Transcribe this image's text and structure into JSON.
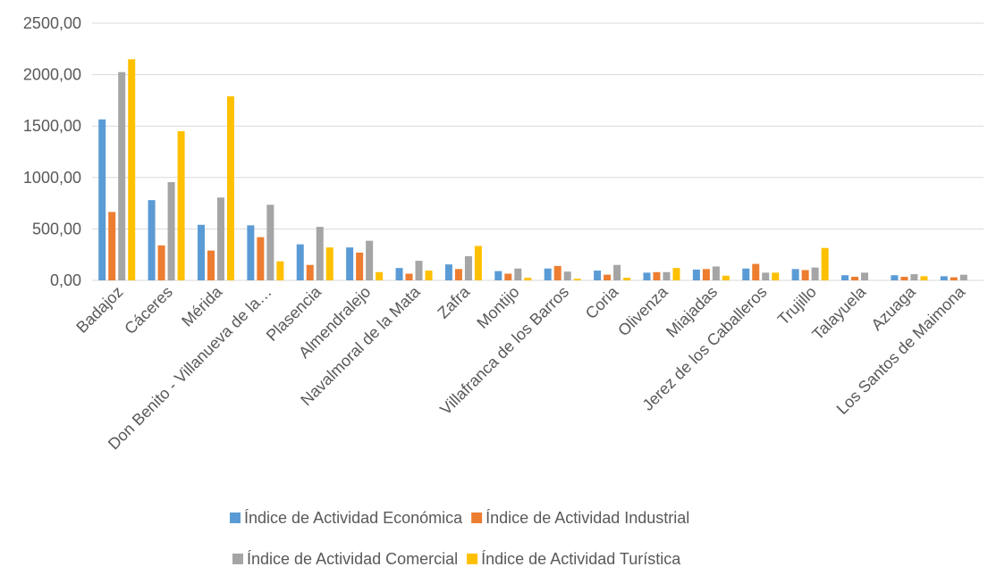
{
  "chart_data": {
    "type": "bar",
    "title": "",
    "xlabel": "",
    "ylabel": "",
    "ylim": [
      0,
      2500
    ],
    "yticks": [
      0,
      500,
      1000,
      1500,
      2000,
      2500
    ],
    "ytick_labels": [
      "0,00",
      "500,00",
      "1000,00",
      "1500,00",
      "2000,00",
      "2500,00"
    ],
    "grid": true,
    "legend_position": "bottom",
    "categories": [
      "Badajoz",
      "Cáceres",
      "Mérida",
      "Don Benito - Villanueva de la…",
      "Plasencia",
      "Almendralejo",
      "Navalmoral de la Mata",
      "Zafra",
      "Montijo",
      "Villafranca de los Barros",
      "Coria",
      "Olivenza",
      "Miajadas",
      "Jerez de los Caballeros",
      "Trujillo",
      "Talayuela",
      "Azuaga",
      "Los Santos de Maimona"
    ],
    "series": [
      {
        "name": "Índice de Actividad Económica",
        "color": "#5b9bd5",
        "values": [
          1565,
          780,
          540,
          535,
          350,
          320,
          120,
          155,
          90,
          115,
          95,
          75,
          105,
          115,
          110,
          50,
          50,
          40
        ]
      },
      {
        "name": "Índice de Actividad Industrial",
        "color": "#ed7d31",
        "values": [
          665,
          340,
          290,
          420,
          150,
          270,
          65,
          110,
          65,
          140,
          55,
          80,
          110,
          160,
          100,
          35,
          35,
          30
        ]
      },
      {
        "name": "Índice de Actividad Comercial",
        "color": "#a5a5a5",
        "values": [
          2025,
          955,
          805,
          735,
          520,
          385,
          190,
          235,
          115,
          85,
          150,
          80,
          135,
          75,
          125,
          75,
          60,
          55
        ]
      },
      {
        "name": "Índice de Actividad Turística",
        "color": "#ffc000",
        "values": [
          2150,
          1450,
          1790,
          185,
          320,
          80,
          95,
          335,
          25,
          15,
          25,
          120,
          45,
          75,
          315,
          0,
          40,
          0
        ]
      }
    ]
  }
}
